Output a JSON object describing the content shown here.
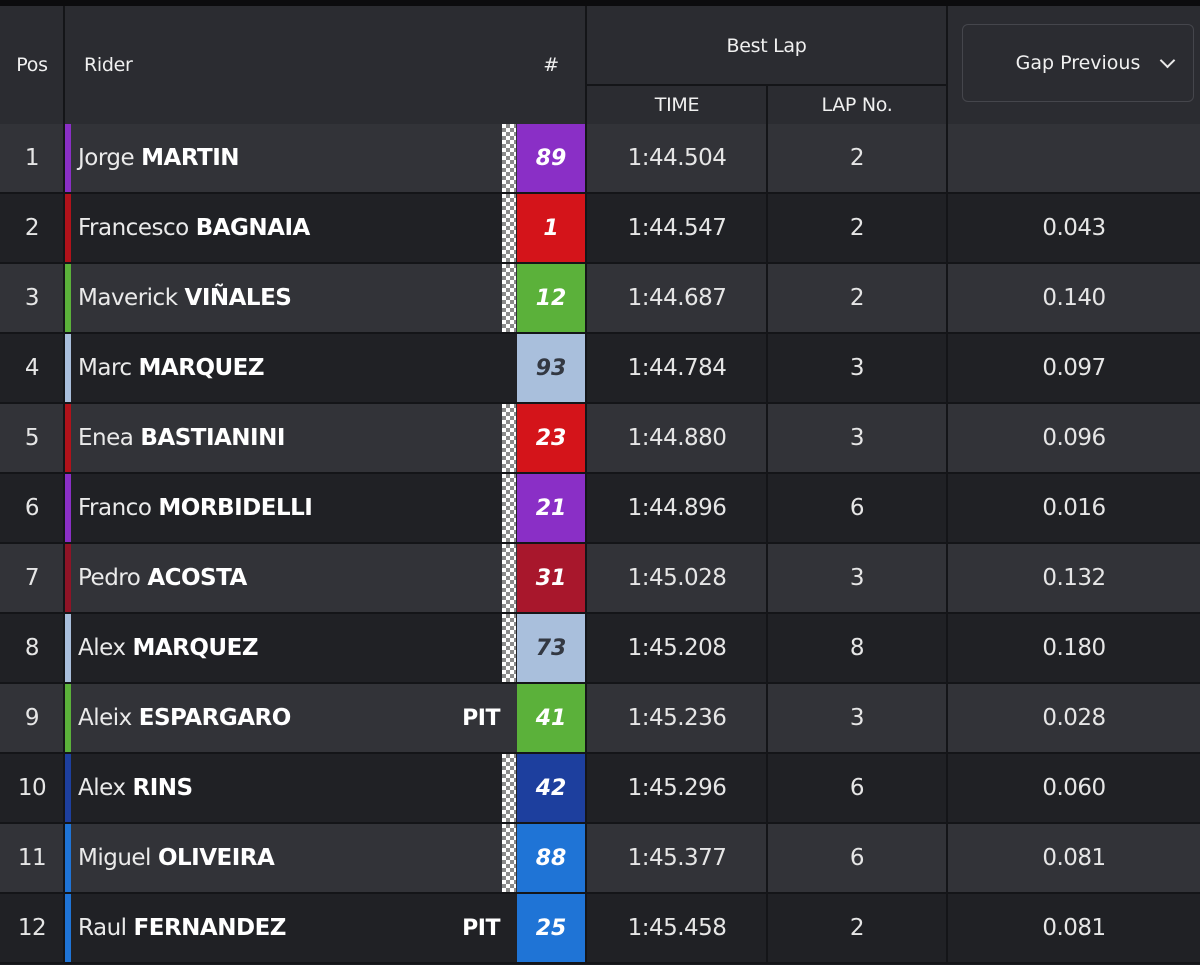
{
  "header": {
    "pos": "Pos",
    "rider": "Rider",
    "number": "#",
    "best_lap": "Best Lap",
    "time": "TIME",
    "lap_no": "LAP No.",
    "gap_select": "Gap Previous"
  },
  "rows": [
    {
      "pos": "1",
      "first": "Jorge",
      "last": "MARTIN",
      "pit": "",
      "num": "89",
      "num_color": "#8a2fc6",
      "num_text": "light",
      "team_color": "#8a2fc6",
      "checkered": true,
      "time": "1:44.504",
      "lap": "2",
      "gap": ""
    },
    {
      "pos": "2",
      "first": "Francesco",
      "last": "BAGNAIA",
      "pit": "",
      "num": "1",
      "num_color": "#d4141a",
      "num_text": "light",
      "team_color": "#b0121a",
      "checkered": true,
      "time": "1:44.547",
      "lap": "2",
      "gap": "0.043"
    },
    {
      "pos": "3",
      "first": "Maverick",
      "last": "VIÑALES",
      "pit": "",
      "num": "12",
      "num_color": "#5bb13a",
      "num_text": "light",
      "team_color": "#5bb13a",
      "checkered": true,
      "time": "1:44.687",
      "lap": "2",
      "gap": "0.140"
    },
    {
      "pos": "4",
      "first": "Marc",
      "last": "MARQUEZ",
      "pit": "",
      "num": "93",
      "num_color": "#a9bfdc",
      "num_text": "dark",
      "team_color": "#a9bfdc",
      "checkered": false,
      "time": "1:44.784",
      "lap": "3",
      "gap": "0.097"
    },
    {
      "pos": "5",
      "first": "Enea",
      "last": "BASTIANINI",
      "pit": "",
      "num": "23",
      "num_color": "#d4141a",
      "num_text": "light",
      "team_color": "#b0121a",
      "checkered": true,
      "time": "1:44.880",
      "lap": "3",
      "gap": "0.096"
    },
    {
      "pos": "6",
      "first": "Franco",
      "last": "MORBIDELLI",
      "pit": "",
      "num": "21",
      "num_color": "#8a2fc6",
      "num_text": "light",
      "team_color": "#8a2fc6",
      "checkered": true,
      "time": "1:44.896",
      "lap": "6",
      "gap": "0.016"
    },
    {
      "pos": "7",
      "first": "Pedro",
      "last": "ACOSTA",
      "pit": "",
      "num": "31",
      "num_color": "#a8172c",
      "num_text": "light",
      "team_color": "#8f1426",
      "checkered": true,
      "time": "1:45.028",
      "lap": "3",
      "gap": "0.132"
    },
    {
      "pos": "8",
      "first": "Alex",
      "last": "MARQUEZ",
      "pit": "",
      "num": "73",
      "num_color": "#a9bfdc",
      "num_text": "dark",
      "team_color": "#a9bfdc",
      "checkered": true,
      "time": "1:45.208",
      "lap": "8",
      "gap": "0.180"
    },
    {
      "pos": "9",
      "first": "Aleix",
      "last": "ESPARGARO",
      "pit": "PIT",
      "num": "41",
      "num_color": "#5bb13a",
      "num_text": "light",
      "team_color": "#5bb13a",
      "checkered": false,
      "time": "1:45.236",
      "lap": "3",
      "gap": "0.028"
    },
    {
      "pos": "10",
      "first": "Alex",
      "last": "RINS",
      "pit": "",
      "num": "42",
      "num_color": "#1d3f9e",
      "num_text": "light",
      "team_color": "#1d3f9e",
      "checkered": true,
      "time": "1:45.296",
      "lap": "6",
      "gap": "0.060"
    },
    {
      "pos": "11",
      "first": "Miguel",
      "last": "OLIVEIRA",
      "pit": "",
      "num": "88",
      "num_color": "#1f74d6",
      "num_text": "light",
      "team_color": "#1f74d6",
      "checkered": true,
      "time": "1:45.377",
      "lap": "6",
      "gap": "0.081"
    },
    {
      "pos": "12",
      "first": "Raul",
      "last": "FERNANDEZ",
      "pit": "PIT",
      "num": "25",
      "num_color": "#1f74d6",
      "num_text": "light",
      "team_color": "#1f74d6",
      "checkered": false,
      "time": "1:45.458",
      "lap": "2",
      "gap": "0.081"
    }
  ]
}
